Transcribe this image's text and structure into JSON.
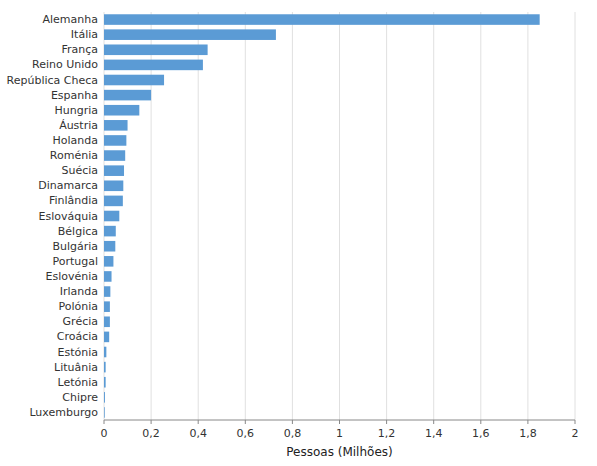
{
  "chart_data": {
    "type": "bar",
    "orientation": "horizontal",
    "categories": [
      "Luxemburgo",
      "Chipre",
      "Letónia",
      "Lituânia",
      "Estónia",
      "Croácia",
      "Grécia",
      "Polónia",
      "Irlanda",
      "Eslovénia",
      "Portugal",
      "Bulgária",
      "Bélgica",
      "Eslováquia",
      "Finlândia",
      "Dinamarca",
      "Suécia",
      "Roménia",
      "Holanda",
      "Áustria",
      "Hungria",
      "Espanha",
      "República Checa",
      "Reino Unido",
      "França",
      "Itália",
      "Alemanha"
    ],
    "values": [
      0.003,
      0.004,
      0.007,
      0.007,
      0.01,
      0.022,
      0.025,
      0.025,
      0.027,
      0.032,
      0.04,
      0.048,
      0.05,
      0.065,
      0.08,
      0.082,
      0.085,
      0.09,
      0.095,
      0.1,
      0.15,
      0.2,
      0.255,
      0.42,
      0.44,
      0.73,
      1.85
    ],
    "color": "#5B9BD5",
    "xlabel": "Pessoas (Milhões)",
    "xlim": [
      0,
      2.0
    ],
    "xticks": [
      0,
      {
        "value": 0.2,
        "label": "0,2"
      },
      {
        "value": 0.4,
        "label": "0,4"
      },
      {
        "value": 0.6,
        "label": "0,6"
      },
      {
        "value": 0.8,
        "label": "0,8"
      },
      1,
      {
        "value": 1.2,
        "label": "1,2"
      },
      {
        "value": 1.4,
        "label": "1,4"
      },
      {
        "value": 1.6,
        "label": "1,6"
      },
      {
        "value": 1.8,
        "label": "1,8"
      },
      2
    ],
    "grid": true
  }
}
